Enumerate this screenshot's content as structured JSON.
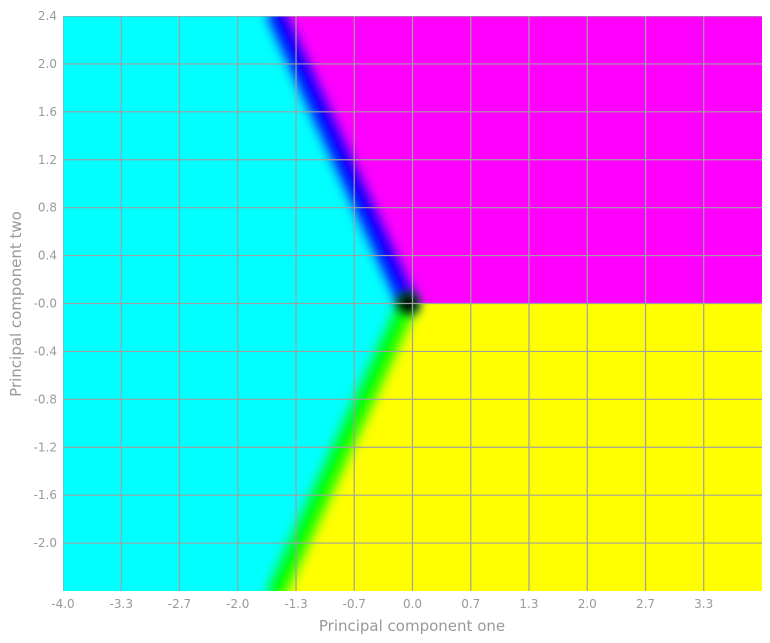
{
  "chart_data": {
    "type": "heatmap",
    "xlabel": "Principal component one",
    "ylabel": "Principal component two",
    "xlim": [
      -4.0,
      4.0
    ],
    "ylim": [
      -2.4,
      2.4
    ],
    "x_ticks": [
      {
        "v": -4.0,
        "label": "-4.0"
      },
      {
        "v": -3.333,
        "label": "-3.3"
      },
      {
        "v": -2.667,
        "label": "-2.7"
      },
      {
        "v": -2.0,
        "label": "-2.0"
      },
      {
        "v": -1.333,
        "label": "-1.3"
      },
      {
        "v": -0.667,
        "label": "-0.7"
      },
      {
        "v": 0.0,
        "label": "0.0"
      },
      {
        "v": 0.667,
        "label": "0.7"
      },
      {
        "v": 1.333,
        "label": "1.3"
      },
      {
        "v": 2.0,
        "label": "2.0"
      },
      {
        "v": 2.667,
        "label": "2.7"
      },
      {
        "v": 3.333,
        "label": "3.3"
      }
    ],
    "y_ticks": [
      {
        "v": 2.4,
        "label": "2.4"
      },
      {
        "v": 2.0,
        "label": "2.0"
      },
      {
        "v": 1.6,
        "label": "1.6"
      },
      {
        "v": 1.2,
        "label": "1.2"
      },
      {
        "v": 0.8,
        "label": "0.8"
      },
      {
        "v": 0.4,
        "label": "0.4"
      },
      {
        "v": 0.0,
        "label": "-0.0"
      },
      {
        "v": -0.4,
        "label": "-0.4"
      },
      {
        "v": -0.8,
        "label": "-0.8"
      },
      {
        "v": -1.2,
        "label": "-1.2"
      },
      {
        "v": -1.6,
        "label": "-1.6"
      },
      {
        "v": -2.0,
        "label": "-2.0"
      }
    ],
    "grid": true,
    "regions": [
      {
        "name": "cyan",
        "color": "#00ffff",
        "polygon": [
          [
            -4.0,
            2.4
          ],
          [
            -1.55,
            2.4
          ],
          [
            -0.05,
            0.0
          ],
          [
            -1.55,
            -2.4
          ],
          [
            -4.0,
            -2.4
          ]
        ]
      },
      {
        "name": "magenta",
        "color": "#ff00ff",
        "polygon": [
          [
            -1.55,
            2.4
          ],
          [
            4.0,
            2.4
          ],
          [
            4.0,
            0.0
          ],
          [
            -0.05,
            0.0
          ]
        ]
      },
      {
        "name": "yellow",
        "color": "#ffff00",
        "polygon": [
          [
            -0.05,
            0.0
          ],
          [
            4.0,
            0.0
          ],
          [
            4.0,
            -2.4
          ],
          [
            -1.55,
            -2.4
          ]
        ]
      }
    ],
    "boundaries": [
      {
        "between": "cyan-magenta",
        "color": "#0000ff",
        "from": [
          -0.05,
          0.0
        ],
        "to": [
          -1.55,
          2.4
        ]
      },
      {
        "between": "magenta-yellow",
        "color": "#ff0000",
        "from": [
          -0.05,
          0.0
        ],
        "to": [
          4.0,
          0.0
        ]
      },
      {
        "between": "cyan-yellow",
        "color": "#00ff00",
        "from": [
          -0.05,
          0.0
        ],
        "to": [
          -1.55,
          -2.4
        ]
      }
    ],
    "center_color": "#000000"
  }
}
